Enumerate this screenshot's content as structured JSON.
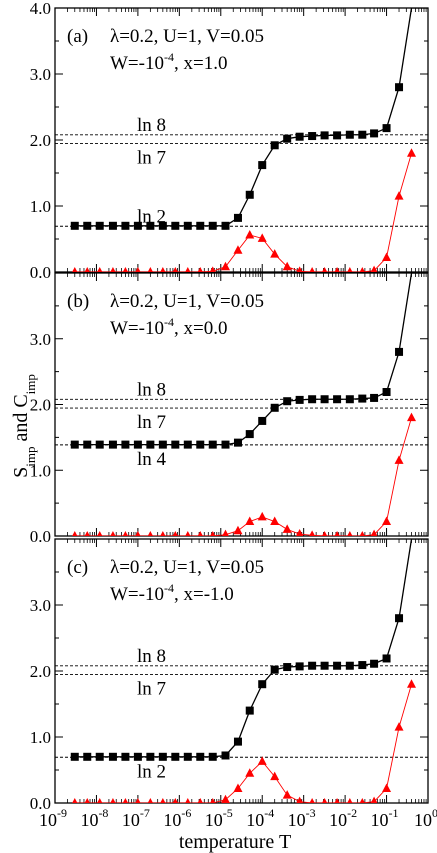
{
  "figure": {
    "ylabel_main": "S",
    "ylabel_sub1": "imp",
    "ylabel_mid": " and C",
    "ylabel_sub2": "imp",
    "xlabel": "temperature T",
    "x_ticks": [
      {
        "exp": -9,
        "base": "10",
        "sup": "-9"
      },
      {
        "exp": -8,
        "base": "10",
        "sup": "-8"
      },
      {
        "exp": -7,
        "base": "10",
        "sup": "-7"
      },
      {
        "exp": -6,
        "base": "10",
        "sup": "-6"
      },
      {
        "exp": -5,
        "base": "10",
        "sup": "-5"
      },
      {
        "exp": -4,
        "base": "10",
        "sup": "-4"
      },
      {
        "exp": -3,
        "base": "10",
        "sup": "-3"
      },
      {
        "exp": -2,
        "base": "10",
        "sup": "-2"
      },
      {
        "exp": -1,
        "base": "10",
        "sup": "-1"
      },
      {
        "exp": 0,
        "base": "10",
        "sup": "0"
      }
    ],
    "colors": {
      "entropy": "#000000",
      "specific_heat": "#ff0000",
      "reference": "#000000"
    }
  },
  "chart_data": [
    {
      "type": "line",
      "panel": "(a)",
      "params_line1": "λ=0.2, U=1, V=0.05",
      "params_line2_pre": "W=-10",
      "params_line2_sup": "-4",
      "params_line2_post": ", x=1.0",
      "x_scale": "log",
      "xlim": [
        1e-09,
        1
      ],
      "ylim": [
        0,
        4
      ],
      "y_ticks": [
        "0.0",
        "1.0",
        "2.0",
        "3.0",
        "4.0"
      ],
      "reference_lines": [
        {
          "label": "ln 8",
          "value": 2.079,
          "label_pos": "above"
        },
        {
          "label": "ln 7",
          "value": 1.946,
          "label_pos": "below"
        },
        {
          "label": "ln 2",
          "value": 0.693,
          "label_pos": "above"
        }
      ],
      "series": [
        {
          "symbol": "square",
          "x": [
            3e-09,
            6e-09,
            1.2e-08,
            2.5e-08,
            5e-08,
            1e-07,
            2e-07,
            4e-07,
            8e-07,
            1.6e-06,
            3.2e-06,
            6.4e-06,
            1.3e-05,
            2.6e-05,
            5e-05,
            0.0001,
            0.0002,
            0.0004,
            0.0008,
            0.0016,
            0.0032,
            0.0064,
            0.013,
            0.026,
            0.05,
            0.1,
            0.2,
            0.4,
            1
          ],
          "y": [
            0.7,
            0.7,
            0.7,
            0.7,
            0.7,
            0.7,
            0.7,
            0.7,
            0.7,
            0.7,
            0.7,
            0.7,
            0.7,
            0.82,
            1.17,
            1.62,
            1.92,
            2.02,
            2.05,
            2.06,
            2.07,
            2.07,
            2.08,
            2.08,
            2.1,
            2.18,
            2.8,
            4.0,
            4.0
          ]
        },
        {
          "symbol": "triangle",
          "x": [
            3e-09,
            6e-09,
            1.2e-08,
            2.5e-08,
            5e-08,
            1e-07,
            2e-07,
            4e-07,
            8e-07,
            1.6e-06,
            3.2e-06,
            6.4e-06,
            1.3e-05,
            2.6e-05,
            5e-05,
            0.0001,
            0.0002,
            0.0004,
            0.0008,
            0.0016,
            0.0032,
            0.0064,
            0.013,
            0.026,
            0.05,
            0.1,
            0.2,
            0.4
          ],
          "y": [
            0.0,
            0.0,
            0.0,
            0.0,
            0.0,
            0.0,
            0.0,
            0.0,
            0.0,
            0.0,
            0.0,
            0.01,
            0.08,
            0.33,
            0.56,
            0.51,
            0.27,
            0.08,
            0.01,
            0.0,
            0.0,
            0.0,
            0.0,
            0.0,
            0.02,
            0.22,
            1.15,
            1.8
          ]
        }
      ]
    },
    {
      "type": "line",
      "panel": "(b)",
      "params_line1": "λ=0.2, U=1, V=0.05",
      "params_line2_pre": "W=-10",
      "params_line2_sup": "-4",
      "params_line2_post": ", x=0.0",
      "x_scale": "log",
      "xlim": [
        1e-09,
        1
      ],
      "ylim": [
        0,
        4
      ],
      "y_ticks": [
        "0.0",
        "1.0",
        "2.0",
        "3.0",
        ""
      ],
      "reference_lines": [
        {
          "label": "ln 8",
          "value": 2.079,
          "label_pos": "above"
        },
        {
          "label": "ln 7",
          "value": 1.946,
          "label_pos": "below"
        },
        {
          "label": "ln 4",
          "value": 1.386,
          "label_pos": "below"
        }
      ],
      "series": [
        {
          "symbol": "square",
          "x": [
            3e-09,
            6e-09,
            1.2e-08,
            2.5e-08,
            5e-08,
            1e-07,
            2e-07,
            4e-07,
            8e-07,
            1.6e-06,
            3.2e-06,
            6.4e-06,
            1.3e-05,
            2.6e-05,
            5e-05,
            0.0001,
            0.0002,
            0.0004,
            0.0008,
            0.0016,
            0.0032,
            0.0064,
            0.013,
            0.026,
            0.05,
            0.1,
            0.2,
            0.4,
            1
          ],
          "y": [
            1.39,
            1.39,
            1.39,
            1.39,
            1.39,
            1.39,
            1.39,
            1.39,
            1.39,
            1.39,
            1.39,
            1.39,
            1.39,
            1.42,
            1.55,
            1.75,
            1.95,
            2.05,
            2.07,
            2.08,
            2.08,
            2.08,
            2.08,
            2.09,
            2.1,
            2.19,
            2.8,
            4.0,
            4.0
          ]
        },
        {
          "symbol": "triangle",
          "x": [
            3e-09,
            6e-09,
            1.2e-08,
            2.5e-08,
            5e-08,
            1e-07,
            2e-07,
            4e-07,
            8e-07,
            1.6e-06,
            3.2e-06,
            6.4e-06,
            1.3e-05,
            2.6e-05,
            5e-05,
            0.0001,
            0.0002,
            0.0004,
            0.0008,
            0.0016,
            0.0032,
            0.0064,
            0.013,
            0.026,
            0.05,
            0.1,
            0.2,
            0.4
          ],
          "y": [
            0.0,
            0.0,
            0.0,
            0.0,
            0.0,
            0.0,
            0.0,
            0.0,
            0.0,
            0.0,
            0.0,
            0.0,
            0.02,
            0.08,
            0.22,
            0.29,
            0.22,
            0.1,
            0.03,
            0.01,
            0.0,
            0.0,
            0.0,
            0.0,
            0.02,
            0.22,
            1.15,
            1.8
          ]
        }
      ]
    },
    {
      "type": "line",
      "panel": "(c)",
      "params_line1": "λ=0.2, U=1, V=0.05",
      "params_line2_pre": "W=-10",
      "params_line2_sup": "-4",
      "params_line2_post": ", x=-1.0",
      "x_scale": "log",
      "xlim": [
        1e-09,
        1
      ],
      "ylim": [
        0,
        4
      ],
      "y_ticks": [
        "0.0",
        "1.0",
        "2.0",
        "3.0",
        ""
      ],
      "reference_lines": [
        {
          "label": "ln 8",
          "value": 2.079,
          "label_pos": "above"
        },
        {
          "label": "ln 7",
          "value": 1.946,
          "label_pos": "below"
        },
        {
          "label": "ln 2",
          "value": 0.693,
          "label_pos": "below"
        }
      ],
      "series": [
        {
          "symbol": "square",
          "x": [
            3e-09,
            6e-09,
            1.2e-08,
            2.5e-08,
            5e-08,
            1e-07,
            2e-07,
            4e-07,
            8e-07,
            1.6e-06,
            3.2e-06,
            6.4e-06,
            1.3e-05,
            2.6e-05,
            5e-05,
            0.0001,
            0.0002,
            0.0004,
            0.0008,
            0.0016,
            0.0032,
            0.0064,
            0.013,
            0.026,
            0.05,
            0.1,
            0.2,
            0.4,
            1
          ],
          "y": [
            0.7,
            0.7,
            0.7,
            0.7,
            0.7,
            0.7,
            0.7,
            0.7,
            0.7,
            0.7,
            0.7,
            0.7,
            0.72,
            0.93,
            1.4,
            1.8,
            2.02,
            2.06,
            2.07,
            2.08,
            2.08,
            2.08,
            2.08,
            2.09,
            2.11,
            2.19,
            2.8,
            4.0,
            4.0
          ]
        },
        {
          "symbol": "triangle",
          "x": [
            3e-09,
            6e-09,
            1.2e-08,
            2.5e-08,
            5e-08,
            1e-07,
            2e-07,
            4e-07,
            8e-07,
            1.6e-06,
            3.2e-06,
            6.4e-06,
            1.3e-05,
            2.6e-05,
            5e-05,
            0.0001,
            0.0002,
            0.0004,
            0.0008,
            0.0016,
            0.0032,
            0.0064,
            0.013,
            0.026,
            0.05,
            0.1,
            0.2,
            0.4
          ],
          "y": [
            0.0,
            0.0,
            0.0,
            0.0,
            0.0,
            0.0,
            0.0,
            0.0,
            0.0,
            0.0,
            0.0,
            0.0,
            0.05,
            0.22,
            0.45,
            0.63,
            0.4,
            0.12,
            0.02,
            0.0,
            0.0,
            0.0,
            0.0,
            0.0,
            0.02,
            0.22,
            1.15,
            1.8
          ]
        }
      ]
    }
  ]
}
